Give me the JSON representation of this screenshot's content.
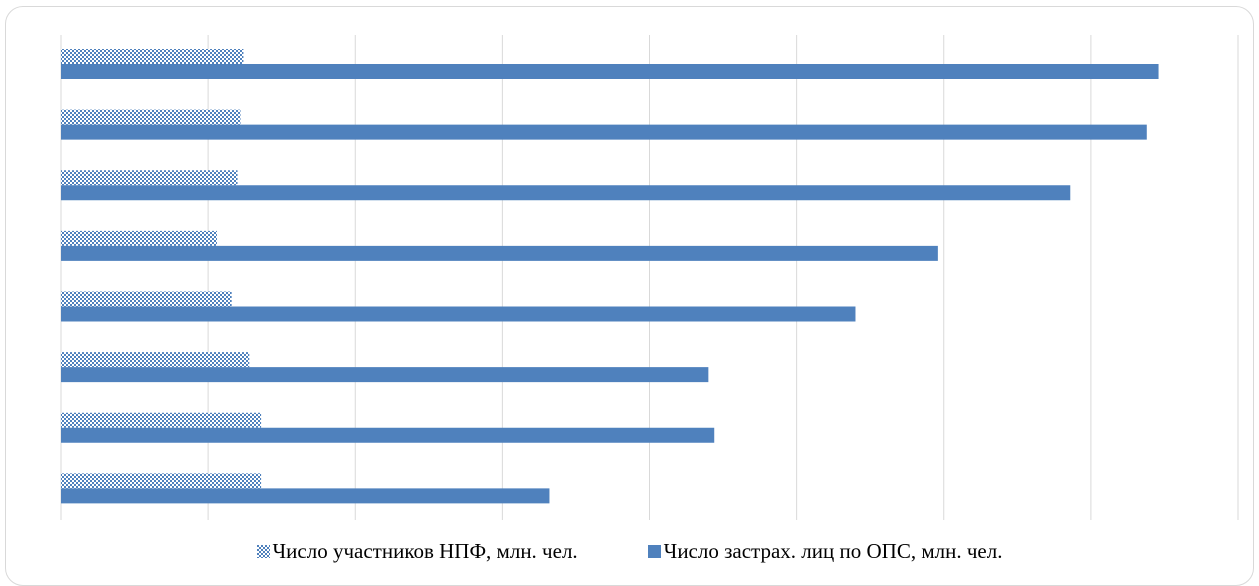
{
  "chart_data": {
    "type": "bar",
    "orientation": "horizontal",
    "title": "",
    "xlabel": "",
    "ylabel": "",
    "categories": [
      "",
      "",
      "",
      "",
      "",
      "",
      "",
      ""
    ],
    "xlim": [
      0,
      40
    ],
    "grid": true,
    "legend_position": "bottom",
    "series": [
      {
        "name": "Число участников НПФ, млн. чел.",
        "color": "#4f81bd",
        "pattern": "dotted",
        "values": [
          6.2,
          6.1,
          6.0,
          5.3,
          5.8,
          6.4,
          6.8,
          6.8
        ]
      },
      {
        "name": "Число застрах. лиц по ОПС, млн. чел.",
        "color": "#4f81bd",
        "pattern": "solid",
        "values": [
          37.3,
          36.9,
          34.3,
          29.8,
          27.0,
          22.0,
          22.2,
          16.6
        ]
      }
    ]
  }
}
